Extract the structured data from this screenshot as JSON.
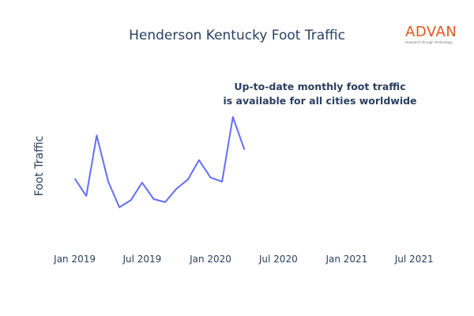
{
  "chart_data": {
    "type": "line",
    "title": "Henderson Kentucky Foot Traffic",
    "xlabel": "",
    "ylabel": "Foot Traffic",
    "x_tick_labels": [
      "Jan 2019",
      "Jul 2019",
      "Jan 2020",
      "Jul 2020",
      "Jan 2021",
      "Jul 2021"
    ],
    "x_range": [
      "2018-12-01",
      "2021-09-15"
    ],
    "y_range": [
      0,
      100
    ],
    "y_ticks_shown": false,
    "grid": false,
    "legend": "none",
    "line_color": "#636efa",
    "series": [
      {
        "x": [
          "2019-01",
          "2019-02",
          "2019-03",
          "2019-04",
          "2019-05",
          "2019-06",
          "2019-07",
          "2019-08",
          "2019-09",
          "2019-10",
          "2019-11",
          "2019-12",
          "2020-01",
          "2020-02",
          "2020-03",
          "2020-04"
        ],
        "values": [
          40,
          23,
          82,
          37,
          12,
          19,
          36,
          20,
          17,
          30,
          39,
          58,
          41,
          37,
          100,
          68
        ]
      }
    ]
  },
  "annotation": {
    "line1": "Up-to-date monthly foot traffic",
    "line2": "is available for all cities worldwide"
  },
  "logo": {
    "name": "ADVAN",
    "tagline": "Research through Technology",
    "color": "#e0561f"
  }
}
